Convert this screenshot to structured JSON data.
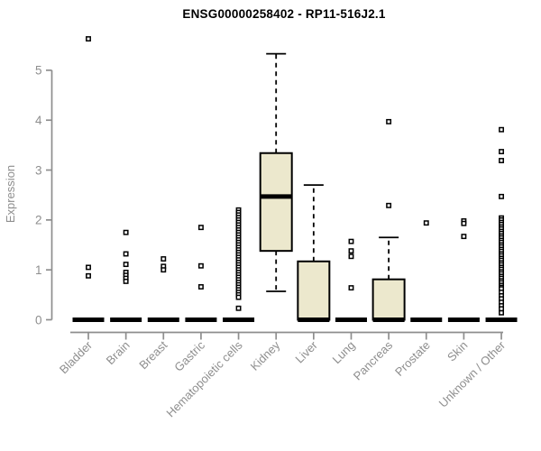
{
  "title": "ENSG00000258402 - RP11-516J2.1",
  "chart_data": {
    "type": "boxplot",
    "title": "ENSG00000258402 - RP11-516J2.1",
    "xlabel": "",
    "ylabel": "Expression",
    "yticks": [
      0,
      1,
      2,
      3,
      4,
      5
    ],
    "ylim": [
      0,
      5.8
    ],
    "grid": false,
    "legend": "none",
    "box_fill_color": "#ece8cd",
    "box_stroke_color": "#000000",
    "axis_color": "#8e8e8e",
    "title_color": "#000000",
    "categories": [
      "Bladder",
      "Brain",
      "Breast",
      "Gastric",
      "Hematopoietic cells",
      "Kidney",
      "Liver",
      "Lung",
      "Pancreas",
      "Prostate",
      "Skin",
      "Unknown / Other"
    ],
    "boxes": [
      {
        "category": "Bladder",
        "median": 0,
        "q1": 0,
        "q3": 0,
        "whisker_low": 0,
        "whisker_high": 0,
        "outliers": [
          5.63,
          1.05,
          0.88
        ]
      },
      {
        "category": "Brain",
        "median": 0,
        "q1": 0,
        "q3": 0,
        "whisker_low": 0,
        "whisker_high": 0,
        "outliers": [
          1.75,
          1.32,
          1.11,
          0.95,
          0.89,
          0.83,
          0.77
        ]
      },
      {
        "category": "Breast",
        "median": 0,
        "q1": 0,
        "q3": 0,
        "whisker_low": 0,
        "whisker_high": 0,
        "outliers": [
          1.22,
          1.07,
          1.0
        ]
      },
      {
        "category": "Gastric",
        "median": 0,
        "q1": 0,
        "q3": 0,
        "whisker_low": 0,
        "whisker_high": 0,
        "outliers": [
          1.85,
          1.08,
          0.66
        ]
      },
      {
        "category": "Hematopoietic cells",
        "median": 0,
        "q1": 0,
        "q3": 0,
        "whisker_low": 0,
        "whisker_high": 0,
        "outliers": [
          2.2,
          2.15,
          2.1,
          2.05,
          2.0,
          1.95,
          1.9,
          1.85,
          1.8,
          1.75,
          1.7,
          1.65,
          1.6,
          1.55,
          1.5,
          1.45,
          1.4,
          1.35,
          1.3,
          1.25,
          1.2,
          1.15,
          1.1,
          1.05,
          1.0,
          0.95,
          0.9,
          0.85,
          0.8,
          0.75,
          0.7,
          0.65,
          0.6,
          0.55,
          0.5,
          0.45,
          0.23
        ]
      },
      {
        "category": "Kidney",
        "median": 2.47,
        "q1": 1.38,
        "q3": 3.34,
        "whisker_low": 0.57,
        "whisker_high": 5.33,
        "outliers": []
      },
      {
        "category": "Liver",
        "median": 0,
        "q1": 0,
        "q3": 1.17,
        "whisker_low": 0,
        "whisker_high": 2.7,
        "outliers": []
      },
      {
        "category": "Lung",
        "median": 0,
        "q1": 0,
        "q3": 0,
        "whisker_low": 0,
        "whisker_high": 0,
        "outliers": [
          1.57,
          1.38,
          1.27,
          0.64
        ]
      },
      {
        "category": "Pancreas",
        "median": 0,
        "q1": 0,
        "q3": 0.81,
        "whisker_low": 0,
        "whisker_high": 1.65,
        "outliers": [
          3.97,
          2.29
        ]
      },
      {
        "category": "Prostate",
        "median": 0,
        "q1": 0,
        "q3": 0,
        "whisker_low": 0,
        "whisker_high": 0,
        "outliers": [
          1.94
        ]
      },
      {
        "category": "Skin",
        "median": 0,
        "q1": 0,
        "q3": 0,
        "whisker_low": 0,
        "whisker_high": 0,
        "outliers": [
          1.98,
          1.93,
          1.67
        ]
      },
      {
        "category": "Unknown / Other",
        "median": 0,
        "q1": 0,
        "q3": 0,
        "whisker_low": 0,
        "whisker_high": 0,
        "outliers": [
          3.81,
          3.37,
          3.19,
          2.47,
          2.04,
          2.0,
          1.95,
          1.91,
          1.86,
          1.82,
          1.77,
          1.73,
          1.68,
          1.64,
          1.59,
          1.55,
          1.5,
          1.46,
          1.41,
          1.37,
          1.32,
          1.28,
          1.23,
          1.19,
          1.14,
          1.1,
          1.05,
          1.01,
          0.96,
          0.92,
          0.87,
          0.83,
          0.78,
          0.74,
          0.69,
          0.65,
          0.62,
          0.55,
          0.48,
          0.42,
          0.35,
          0.28,
          0.22,
          0.14
        ]
      }
    ]
  }
}
